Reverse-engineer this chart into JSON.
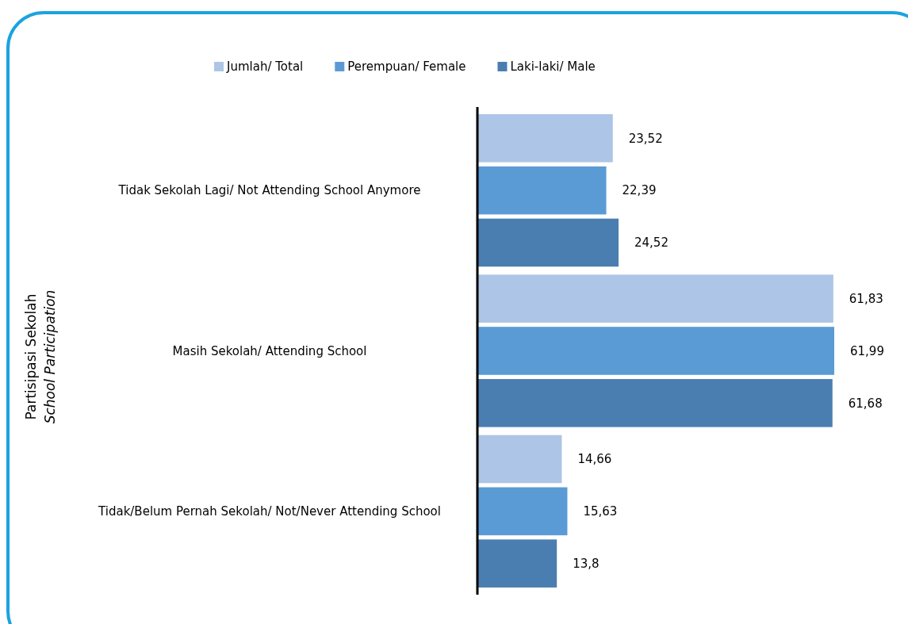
{
  "chart_data": {
    "type": "bar",
    "orientation": "horizontal",
    "ylabel": "Partisipasi Sekolah\nSchool Participation",
    "categories": [
      "Tidak Sekolah Lagi/ Not Attending School Anymore",
      "Masih Sekolah/ Attending School",
      "Tidak/Belum Pernah Sekolah/ Not/Never Attending School"
    ],
    "series": [
      {
        "name": "Jumlah/ Total",
        "color": "#adc5e6",
        "values": [
          23.52,
          61.83,
          14.66
        ],
        "value_labels": [
          "23,52",
          "61,83",
          "14,66"
        ]
      },
      {
        "name": "Perempuan/ Female",
        "color": "#5b9bd5",
        "values": [
          22.39,
          61.99,
          15.63
        ],
        "value_labels": [
          "22,39",
          "61,99",
          "15,63"
        ]
      },
      {
        "name": "Laki-laki/ Male",
        "color": "#4a7eb0",
        "values": [
          24.52,
          61.68,
          13.8
        ],
        "value_labels": [
          "24,52",
          "61,68",
          "13,8"
        ]
      }
    ],
    "legend": "top"
  }
}
